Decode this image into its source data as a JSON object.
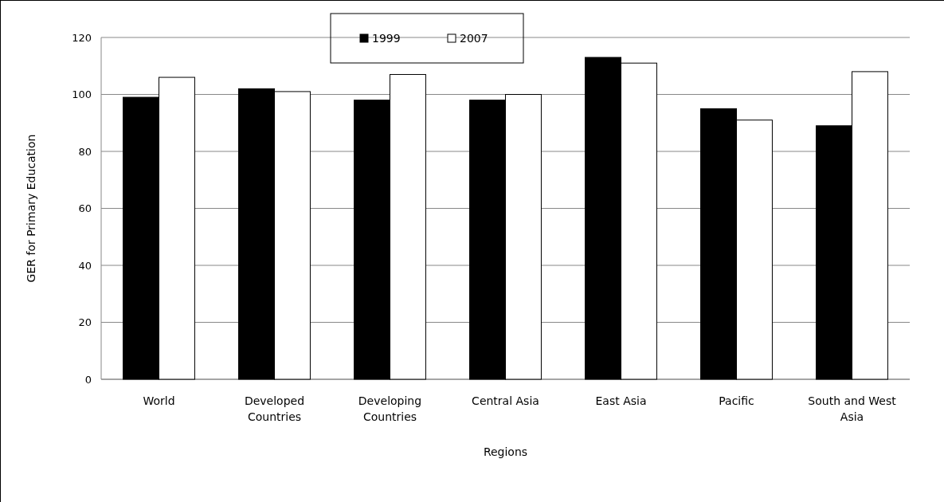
{
  "chart_data": {
    "type": "bar",
    "xlabel": "Regions",
    "ylabel": "GER for Primary Education",
    "categories": [
      "World",
      "Developed Countries",
      "Developing Countries",
      "Central Asia",
      "East Asia",
      "Pacific",
      "South and West Asia"
    ],
    "series": [
      {
        "name": "1999",
        "color": "#000000",
        "values": [
          99,
          102,
          98,
          98,
          113,
          95,
          89
        ]
      },
      {
        "name": "2007",
        "color": "#ffffff",
        "values": [
          106,
          101,
          107,
          100,
          111,
          91,
          108
        ]
      }
    ],
    "ylim": [
      0,
      120
    ],
    "yticks": [
      0,
      20,
      40,
      60,
      80,
      100,
      120
    ],
    "grid": "y",
    "legend": "top"
  }
}
